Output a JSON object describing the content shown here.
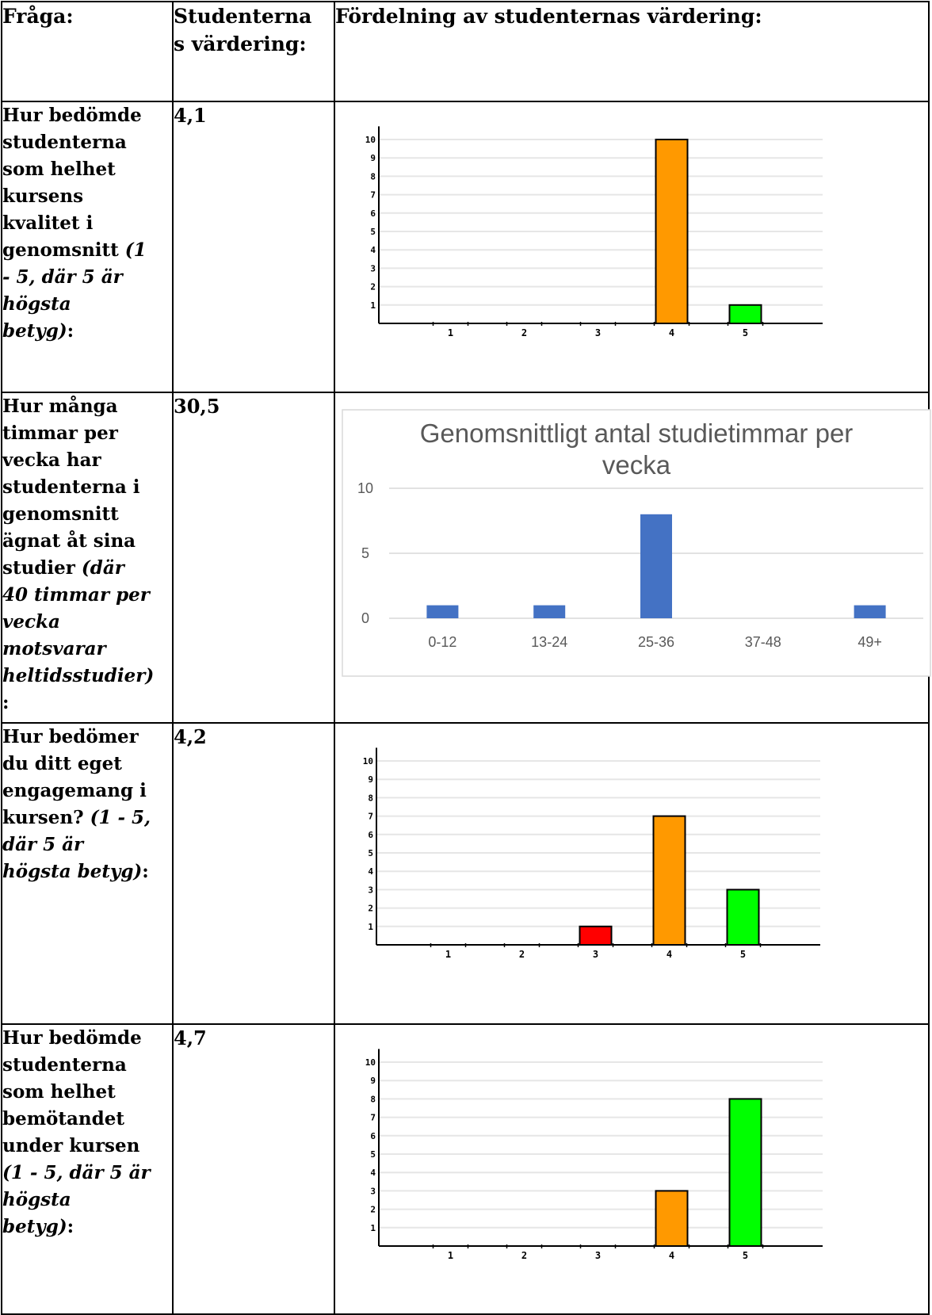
{
  "header": {
    "question": "Fråga:",
    "rating_line1": "Studenterna",
    "rating_line2": "s värdering:",
    "distribution": "Fördelning av studenternas värdering:"
  },
  "rows": [
    {
      "question_html": "Hur bedömde<br>studenterna<br>som helhet<br>kursens<br>kvalitet i<br>genomsnitt <i>(1<br>- 5, där 5 är<br>högsta<br>betyg)</i>:",
      "rating": "4,1"
    },
    {
      "question_html": "Hur många<br>timmar per<br>vecka har<br>studenterna i<br>genomsnitt<br>ägnat åt sina<br>studier <i>(där<br>40 timmar per<br>vecka<br>motsvarar<br>heltidsstudier)</i><br>:",
      "rating": "30,5"
    },
    {
      "question_html": "Hur bedömer<br>du ditt eget<br>engagemang i<br>kursen? <i>(1 - 5,<br>där 5 är<br>högsta betyg)</i>:",
      "rating": "4,2"
    },
    {
      "question_html": "Hur bedömde<br>studenterna<br>som helhet<br>bemötandet<br>under kursen<br><i>(1 - 5, där 5 är<br>högsta<br>betyg)</i>:",
      "rating": "4,7"
    }
  ],
  "chart_data": [
    {
      "type": "bar",
      "categories": [
        "1",
        "2",
        "3",
        "4",
        "5"
      ],
      "values": [
        0,
        0,
        0,
        10,
        1
      ],
      "colors": [
        "#ff0000",
        "#ff0000",
        "#ff0000",
        "#ff9900",
        "#00ff00"
      ],
      "yticks": [
        "1",
        "2",
        "3",
        "4",
        "5",
        "6",
        "7",
        "8",
        "9",
        "10"
      ],
      "ylim": [
        0,
        10.5
      ],
      "grid": true
    },
    {
      "type": "bar",
      "title": "Genomsnittligt antal studietimmar per vecka",
      "categories": [
        "0-12",
        "13-24",
        "25-36",
        "37-48",
        "49+"
      ],
      "values": [
        1,
        1,
        8,
        0,
        1
      ],
      "color": "#4472c4",
      "yticks": [
        "0",
        "5",
        "10"
      ],
      "ylim": [
        0,
        10
      ],
      "grid": true
    },
    {
      "type": "bar",
      "categories": [
        "1",
        "2",
        "3",
        "4",
        "5"
      ],
      "values": [
        0,
        0,
        1,
        7,
        3
      ],
      "colors": [
        "#ff0000",
        "#ff0000",
        "#ff0000",
        "#ff9900",
        "#00ff00"
      ],
      "yticks": [
        "1",
        "2",
        "3",
        "4",
        "5",
        "6",
        "7",
        "8",
        "9",
        "10"
      ],
      "ylim": [
        0,
        10.5
      ],
      "grid": true
    },
    {
      "type": "bar",
      "categories": [
        "1",
        "2",
        "3",
        "4",
        "5"
      ],
      "values": [
        0,
        0,
        0,
        3,
        8
      ],
      "colors": [
        "#ff0000",
        "#ff0000",
        "#ff0000",
        "#ff9900",
        "#00ff00"
      ],
      "yticks": [
        "1",
        "2",
        "3",
        "4",
        "5",
        "6",
        "7",
        "8",
        "9",
        "10"
      ],
      "ylim": [
        0,
        10.5
      ],
      "grid": true
    }
  ]
}
